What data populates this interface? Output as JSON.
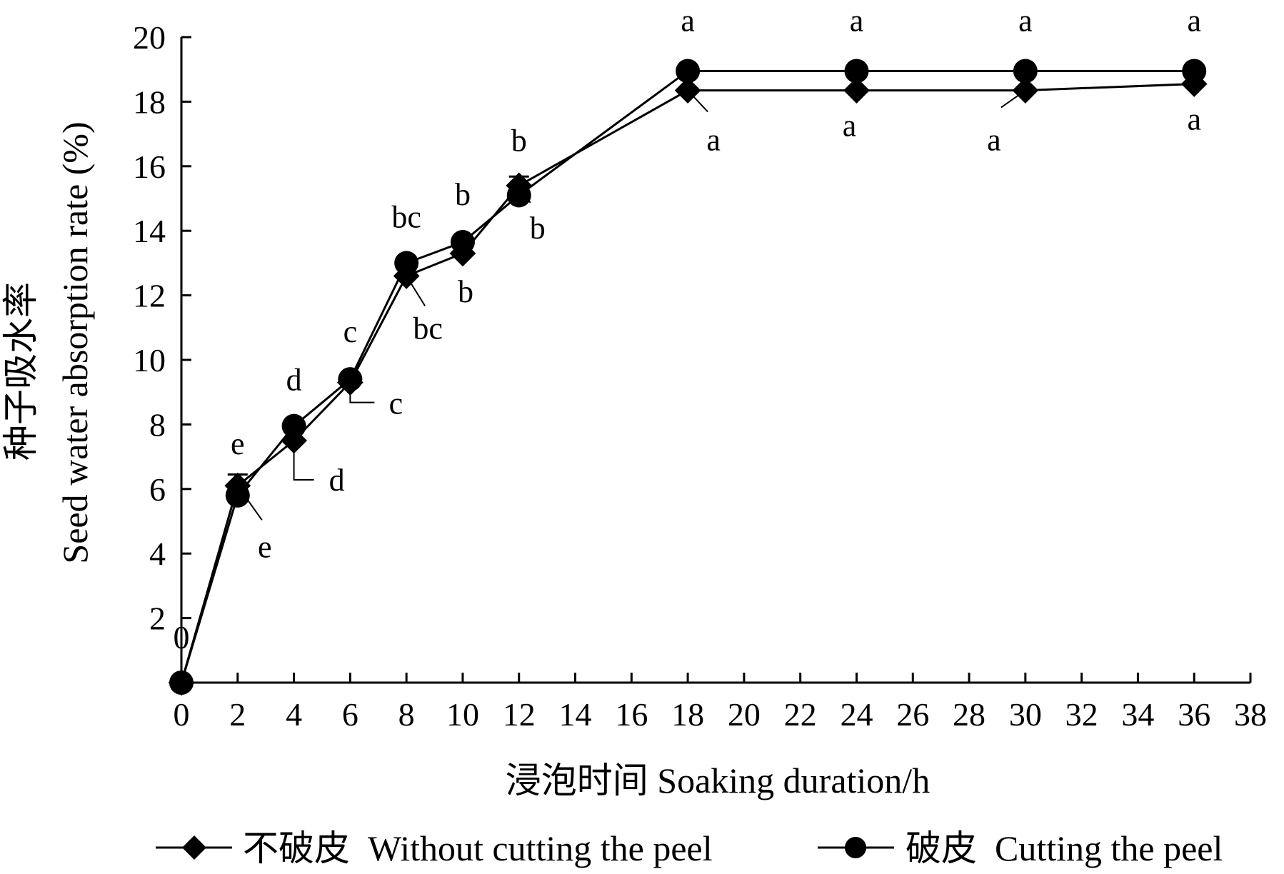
{
  "chart_data": {
    "type": "line",
    "xlabel": "浸泡时间  Soaking duration/h",
    "ylabel_cn": "种子吸水率",
    "ylabel_en": "Seed water absorption rate (%)",
    "xlim": [
      0,
      38
    ],
    "ylim": [
      0,
      20
    ],
    "x_ticks": [
      0,
      2,
      4,
      6,
      8,
      10,
      12,
      14,
      16,
      18,
      20,
      22,
      24,
      26,
      28,
      30,
      32,
      34,
      36,
      38
    ],
    "y_ticks": [
      2,
      4,
      6,
      8,
      10,
      12,
      14,
      16,
      18,
      20
    ],
    "zero_label": "0",
    "grid": false,
    "legend_position": "bottom",
    "x": [
      0,
      2,
      4,
      6,
      8,
      10,
      12,
      18,
      24,
      30,
      36
    ],
    "series": [
      {
        "name": "不破皮  Without cutting the peel",
        "marker": "diamond",
        "values": [
          0,
          6.1,
          7.5,
          9.3,
          12.6,
          13.3,
          15.4,
          18.35,
          18.35,
          18.35,
          18.55
        ],
        "labels": [
          "",
          "e",
          "d",
          "c",
          "bc",
          "b",
          "b",
          "a",
          "a",
          "a",
          "a"
        ]
      },
      {
        "name": "破皮  Cutting the peel",
        "marker": "circle",
        "values": [
          0,
          5.8,
          7.95,
          9.4,
          13.0,
          13.65,
          15.1,
          18.95,
          18.95,
          18.95,
          18.95
        ],
        "labels": [
          "",
          "e",
          "d",
          "c",
          "bc",
          "b",
          "b",
          "a",
          "a",
          "a",
          "a"
        ]
      }
    ],
    "color": "#000000"
  }
}
